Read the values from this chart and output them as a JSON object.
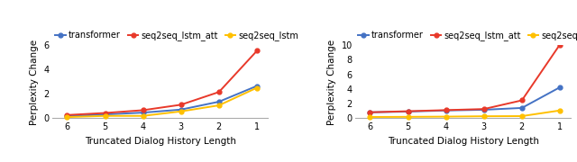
{
  "x": [
    6,
    5,
    4,
    3,
    2,
    1
  ],
  "left": {
    "transformer": [
      0.15,
      0.3,
      0.45,
      0.7,
      1.35,
      2.65
    ],
    "seq2seq_lstm_att": [
      0.25,
      0.42,
      0.65,
      1.1,
      2.15,
      5.55
    ],
    "seq2seq_lstm": [
      0.08,
      0.18,
      0.18,
      0.55,
      1.05,
      2.5
    ]
  },
  "right": {
    "transformer": [
      0.75,
      0.85,
      1.0,
      1.1,
      1.35,
      4.2
    ],
    "seq2seq_lstm_att": [
      0.75,
      0.9,
      1.05,
      1.2,
      2.4,
      10.1
    ],
    "seq2seq_lstm": [
      0.1,
      0.12,
      0.15,
      0.2,
      0.22,
      1.0
    ]
  },
  "left_ylim": [
    -0.15,
    6
  ],
  "right_ylim": [
    -0.3,
    10
  ],
  "left_yticks": [
    0,
    2,
    4,
    6
  ],
  "right_yticks": [
    0,
    2,
    4,
    6,
    8,
    10
  ],
  "colors": {
    "transformer": "#4472C4",
    "seq2seq_lstm_att": "#E8392A",
    "seq2seq_lstm": "#FFC000"
  },
  "legend_labels": [
    "transformer",
    "seq2seq_lstm_att",
    "seq2seq_lstm"
  ],
  "legend_display": [
    "transformer",
    "seq2seq_lstm_att",
    "seq2seq_lstm"
  ],
  "xlabel": "Truncated Dialog History Length",
  "ylabel": "Perplexity Change",
  "marker": "o",
  "markersize": 3.5,
  "linewidth": 1.4
}
